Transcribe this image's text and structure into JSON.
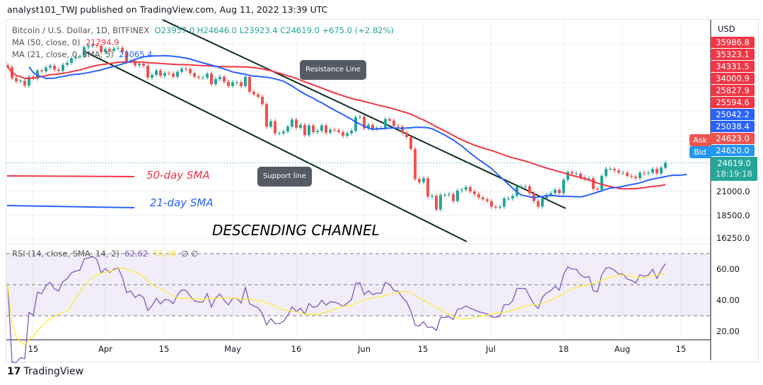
{
  "header": {
    "published": "analyst101_TWJ published on TradingView.com, Aug 11, 2022 13:39 UTC"
  },
  "legend": {
    "symbol": "Bitcoin / U.S. Dollar, 1D, BITFINEX",
    "ohlc": "O23957.0  H24646.0  L23923.4  C24619.0  +675.0 (+2.82%)",
    "ma50_label": "MA (50, close, 0)",
    "ma50_value": "21794.9",
    "ma21_label": "MA (21, close, 0, SMA, 5)",
    "ma21_value": "23065.4",
    "rsi_label": "RSI (14, close, SMA, 14, 2)",
    "rsi_value": "62.62",
    "rsi_sma_value": "56.38",
    "rsi_extra": "∅ ∅"
  },
  "annotations": {
    "resistance": "Resistance Line",
    "support": "Support line",
    "sma50": "50-day SMA",
    "sma21": "21-day SMA",
    "channel": "DESCENDING CHANNEL"
  },
  "price_axis": {
    "currency": "USD",
    "labels": [
      {
        "text": "35986.8",
        "color": "#f23645"
      },
      {
        "text": "35323.1",
        "color": "#f23645"
      },
      {
        "text": "34331.5",
        "color": "#f23645"
      },
      {
        "text": "34000.9",
        "color": "#f23645"
      },
      {
        "text": "25827.9",
        "color": "#f23645"
      },
      {
        "text": "25594.6",
        "color": "#f23645"
      },
      {
        "text": "25042.2",
        "color": "#2962ff"
      },
      {
        "text": "25038.4",
        "color": "#2962ff"
      },
      {
        "text": "24623.0",
        "color": "#ef5350"
      },
      {
        "text": "24620.0",
        "color": "#2196f3"
      }
    ],
    "ask": "Ask",
    "bid": "Bid",
    "last": "24619.0",
    "countdown": "18:19:18",
    "ticks": [
      "21000.0",
      "18500.0",
      "16250.0"
    ],
    "rsi_ticks": [
      "60.00",
      "40.00",
      "20.00"
    ]
  },
  "time_axis": [
    "15",
    "Apr",
    "15",
    "May",
    "16",
    "Jun",
    "15",
    "Jul",
    "18",
    "Aug",
    "15"
  ],
  "brand": "TradingView",
  "colors": {
    "up": "#26a69a",
    "down": "#ef5350",
    "ma50": "#f23645",
    "ma21": "#2962ff",
    "rsi": "#7e57c2",
    "rsi_sma": "#ffeb3b"
  },
  "chart_data": {
    "type": "candlestick",
    "scale": "log",
    "start_date": "2022-03-09",
    "end_date": "2022-08-11",
    "closes": [
      41900,
      39400,
      38700,
      38800,
      37800,
      39700,
      39300,
      41100,
      40900,
      41800,
      42200,
      41300,
      41000,
      42400,
      42900,
      44000,
      44300,
      44500,
      46800,
      47100,
      47400,
      47100,
      45500,
      46300,
      45800,
      46400,
      46600,
      45500,
      43200,
      43400,
      42300,
      42700,
      42200,
      39500,
      40100,
      41100,
      39900,
      40500,
      40400,
      39700,
      40800,
      41500,
      41400,
      40500,
      39700,
      39500,
      39500,
      40400,
      38100,
      39200,
      39700,
      38600,
      37700,
      38500,
      38500,
      37700,
      39700,
      36500,
      36000,
      35500,
      34100,
      30100,
      31000,
      29000,
      29000,
      29300,
      30100,
      31300,
      29900,
      30400,
      28700,
      30300,
      29200,
      29400,
      30300,
      29100,
      29600,
      29500,
      29200,
      28600,
      29000,
      29400,
      31700,
      31800,
      29800,
      30400,
      29700,
      29900,
      29900,
      31400,
      31100,
      30200,
      30100,
      29100,
      28400,
      26600,
      22500,
      22100,
      22600,
      20400,
      20500,
      19000,
      20600,
      20600,
      20700,
      19900,
      21100,
      21200,
      21500,
      21000,
      20700,
      20300,
      20100,
      19900,
      19300,
      19200,
      19300,
      20200,
      20200,
      20500,
      21600,
      21600,
      21600,
      20800,
      19900,
      19300,
      20200,
      20600,
      20800,
      21200,
      20800,
      22400,
      23400,
      23200,
      23200,
      22700,
      22500,
      22600,
      21300,
      21200,
      22900,
      23800,
      23800,
      23600,
      23300,
      23300,
      22900,
      22800,
      22600,
      23300,
      23200,
      23300,
      23800,
      23200,
      23957,
      24619
    ]
  }
}
